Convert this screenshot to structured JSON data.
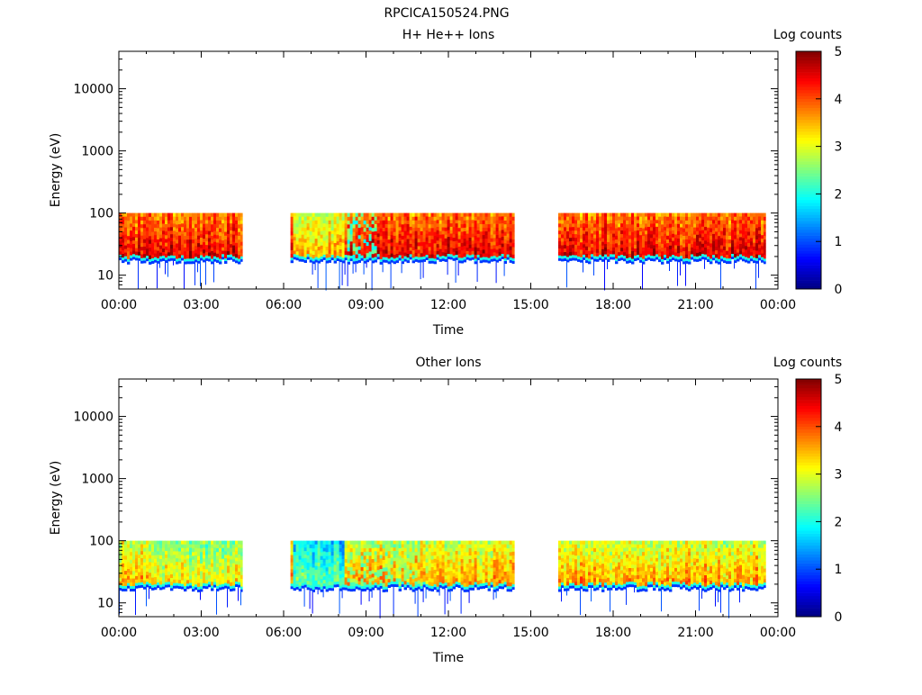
{
  "figure": {
    "title": "RPCICA150524.PNG"
  },
  "colorscale": [
    "#00007f",
    "#0000ff",
    "#007fff",
    "#00ffff",
    "#7fff7f",
    "#ffff00",
    "#ff7f00",
    "#ff0000",
    "#7f0000"
  ],
  "chart_data": [
    {
      "type": "heatmap",
      "title": "H+ He++ Ions",
      "xlabel": "Time",
      "ylabel": "Energy (eV)",
      "y_scale": "log",
      "xlim_hours": [
        0,
        24
      ],
      "ylim_ev": [
        6,
        40000
      ],
      "x_ticks": [
        "00:00",
        "03:00",
        "06:00",
        "09:00",
        "12:00",
        "15:00",
        "18:00",
        "21:00",
        "00:00"
      ],
      "y_ticks": [
        {
          "value": 10,
          "label": "10"
        },
        {
          "value": 100,
          "label": "100"
        },
        {
          "value": 1000,
          "label": "1000"
        },
        {
          "value": 10000,
          "label": "10000"
        }
      ],
      "colorbar": {
        "label": "Log counts",
        "range": [
          0,
          5
        ],
        "ticks": [
          "0",
          "1",
          "2",
          "3",
          "4",
          "5"
        ]
      },
      "data_segments_hours": [
        [
          0.0,
          4.5
        ],
        [
          6.25,
          14.4
        ],
        [
          16.0,
          23.55
        ]
      ],
      "energy_upper_ev": 100,
      "energy_cutoff_ev": 20,
      "peak_log_counts": 4.6
    },
    {
      "type": "heatmap",
      "title": "Other Ions",
      "xlabel": "Time",
      "ylabel": "Energy (eV)",
      "y_scale": "log",
      "xlim_hours": [
        0,
        24
      ],
      "ylim_ev": [
        6,
        40000
      ],
      "x_ticks": [
        "00:00",
        "03:00",
        "06:00",
        "09:00",
        "12:00",
        "15:00",
        "18:00",
        "21:00",
        "00:00"
      ],
      "y_ticks": [
        {
          "value": 10,
          "label": "10"
        },
        {
          "value": 100,
          "label": "100"
        },
        {
          "value": 1000,
          "label": "1000"
        },
        {
          "value": 10000,
          "label": "10000"
        }
      ],
      "colorbar": {
        "label": "Log counts",
        "range": [
          0,
          5
        ],
        "ticks": [
          "0",
          "1",
          "2",
          "3",
          "4",
          "5"
        ]
      },
      "data_segments_hours": [
        [
          0.0,
          4.5
        ],
        [
          6.25,
          14.4
        ],
        [
          16.0,
          23.55
        ]
      ],
      "energy_upper_ev": 100,
      "energy_cutoff_ev": 20,
      "peak_log_counts": 3.7
    }
  ]
}
